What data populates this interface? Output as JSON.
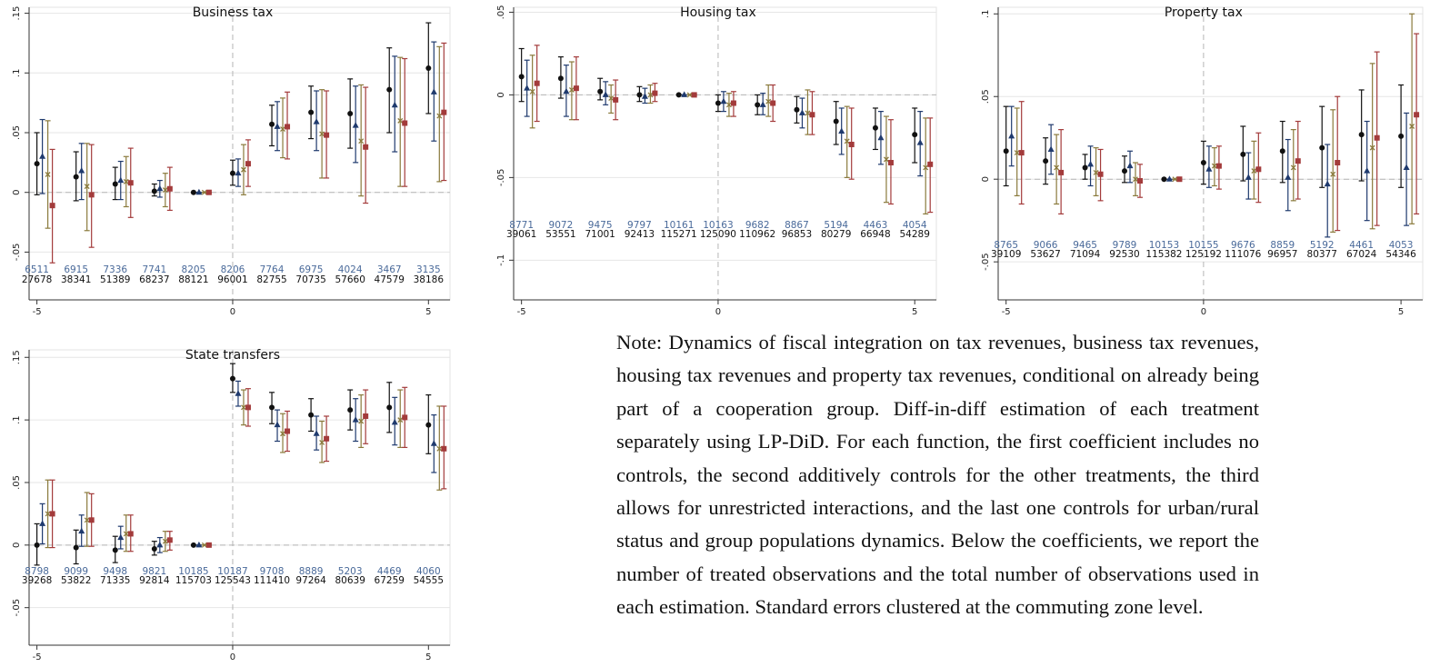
{
  "chart_data": [
    {
      "type": "coefplot",
      "title": "Business tax",
      "x": [
        -5,
        -4,
        -3,
        -2,
        -1,
        0,
        1,
        2,
        3,
        4,
        5
      ],
      "xlim": [
        -5.2,
        5.55
      ],
      "xticks": [
        -5,
        0,
        5
      ],
      "ylim": [
        -0.09,
        0.155
      ],
      "yticks": [
        {
          "value": -0.05,
          "label": "-.05"
        },
        0,
        {
          "value": 0.05,
          "label": ".05"
        },
        {
          "value": 0.1,
          "label": ".1"
        },
        {
          "value": 0.15,
          "label": ".15"
        }
      ],
      "grid": true,
      "series": [
        {
          "color": "#111111",
          "marker": "circle",
          "values": [
            0.024,
            0.013,
            0.007,
            0.001,
            0,
            0.016,
            0.057,
            0.067,
            0.066,
            0.086,
            0.104
          ],
          "lower": [
            -0.002,
            -0.007,
            -0.006,
            -0.003,
            0,
            0.006,
            0.039,
            0.045,
            0.037,
            0.05,
            0.066
          ],
          "upper": [
            0.05,
            0.034,
            0.021,
            0.007,
            0,
            0.027,
            0.073,
            0.089,
            0.095,
            0.121,
            0.142
          ]
        },
        {
          "color": "#1f3a6e",
          "marker": "triangle",
          "values": [
            0.03,
            0.018,
            0.01,
            0.003,
            0,
            0.016,
            0.055,
            0.059,
            0.056,
            0.073,
            0.084
          ],
          "lower": [
            -0.001,
            -0.006,
            -0.006,
            -0.004,
            0,
            0.005,
            0.035,
            0.035,
            0.025,
            0.034,
            0.043
          ],
          "upper": [
            0.061,
            0.041,
            0.026,
            0.01,
            0,
            0.028,
            0.076,
            0.085,
            0.089,
            0.114,
            0.126
          ]
        },
        {
          "color": "#8a7a3c",
          "marker": "x",
          "values": [
            0.015,
            0.005,
            0.009,
            0.002,
            0,
            0.019,
            0.053,
            0.049,
            0.043,
            0.06,
            0.064
          ],
          "lower": [
            -0.03,
            -0.032,
            -0.012,
            -0.012,
            0,
            -0.002,
            0.029,
            0.012,
            -0.003,
            0.005,
            0.009
          ],
          "upper": [
            0.06,
            0.041,
            0.03,
            0.016,
            0,
            0.04,
            0.079,
            0.086,
            0.09,
            0.113,
            0.122
          ]
        },
        {
          "color": "#a33b3b",
          "marker": "square",
          "values": [
            -0.011,
            -0.002,
            0.008,
            0.003,
            0,
            0.024,
            0.055,
            0.048,
            0.038,
            0.058,
            0.067
          ],
          "lower": [
            -0.059,
            -0.046,
            -0.021,
            -0.015,
            0,
            0.005,
            0.028,
            0.012,
            -0.009,
            0.005,
            0.01
          ],
          "upper": [
            0.036,
            0.04,
            0.037,
            0.021,
            0,
            0.044,
            0.084,
            0.085,
            0.088,
            0.112,
            0.125
          ]
        }
      ],
      "treated_counts": [
        6511,
        6915,
        7336,
        7741,
        8205,
        8206,
        7764,
        6975,
        4024,
        3467,
        3135
      ],
      "total_counts": [
        27678,
        38341,
        51389,
        68237,
        88121,
        96001,
        82755,
        70735,
        57660,
        47579,
        38186
      ]
    },
    {
      "type": "coefplot",
      "title": "Housing tax",
      "x": [
        -5,
        -4,
        -3,
        -2,
        -1,
        0,
        1,
        2,
        3,
        4,
        5
      ],
      "xlim": [
        -5.2,
        5.55
      ],
      "xticks": [
        -5,
        0,
        5
      ],
      "ylim": [
        -0.124,
        0.053
      ],
      "yticks": [
        {
          "value": -0.1,
          "label": "-.1"
        },
        {
          "value": -0.05,
          "label": "-.05"
        },
        0,
        {
          "value": 0.05,
          "label": ".05"
        }
      ],
      "grid": true,
      "series": [
        {
          "color": "#111111",
          "marker": "circle",
          "values": [
            0.011,
            0.01,
            0.002,
            0,
            0,
            -0.005,
            -0.006,
            -0.009,
            -0.016,
            -0.02,
            -0.024
          ],
          "lower": [
            -0.004,
            -0.002,
            -0.003,
            -0.004,
            0,
            -0.01,
            -0.012,
            -0.017,
            -0.03,
            -0.033,
            -0.041
          ],
          "upper": [
            0.028,
            0.023,
            0.01,
            0.005,
            0,
            0,
            0,
            -0.001,
            -0.004,
            -0.008,
            -0.008
          ]
        },
        {
          "color": "#1f3a6e",
          "marker": "triangle",
          "values": [
            0.004,
            0.002,
            0,
            -0.001,
            0,
            -0.004,
            -0.006,
            -0.011,
            -0.022,
            -0.026,
            -0.029
          ],
          "lower": [
            -0.013,
            -0.013,
            -0.006,
            -0.005,
            0,
            -0.01,
            -0.012,
            -0.02,
            -0.036,
            -0.042,
            -0.049
          ],
          "upper": [
            0.021,
            0.018,
            0.008,
            0.004,
            0,
            0.002,
            0.001,
            -0.002,
            -0.008,
            -0.01,
            -0.01
          ]
        },
        {
          "color": "#8a7a3c",
          "marker": "x",
          "values": [
            0.002,
            0.003,
            -0.002,
            0,
            0,
            -0.006,
            -0.004,
            -0.011,
            -0.028,
            -0.039,
            -0.044
          ],
          "lower": [
            -0.02,
            -0.015,
            -0.011,
            -0.005,
            0,
            -0.013,
            -0.013,
            -0.024,
            -0.05,
            -0.065,
            -0.072
          ],
          "upper": [
            0.024,
            0.02,
            0.006,
            0.006,
            0,
            0.001,
            0.006,
            0.003,
            -0.007,
            -0.013,
            -0.014
          ]
        },
        {
          "color": "#a33b3b",
          "marker": "square",
          "values": [
            0.007,
            0.004,
            -0.003,
            0.001,
            0,
            -0.005,
            -0.005,
            -0.012,
            -0.03,
            -0.041,
            -0.042
          ],
          "lower": [
            -0.016,
            -0.015,
            -0.015,
            -0.004,
            0,
            -0.013,
            -0.016,
            -0.024,
            -0.051,
            -0.066,
            -0.071
          ],
          "upper": [
            0.03,
            0.023,
            0.009,
            0.007,
            0,
            0.002,
            0.006,
            0.002,
            -0.008,
            -0.015,
            -0.014
          ]
        }
      ],
      "treated_counts": [
        8771,
        9072,
        9475,
        9797,
        10161,
        10163,
        9682,
        8867,
        5194,
        4463,
        4054
      ],
      "total_counts": [
        39061,
        53551,
        71001,
        92413,
        115271,
        125090,
        110962,
        96853,
        80279,
        66948,
        54289
      ]
    },
    {
      "type": "coefplot",
      "title": "Property tax",
      "x": [
        -5,
        -4,
        -3,
        -2,
        -1,
        0,
        1,
        2,
        3,
        4,
        5
      ],
      "xlim": [
        -5.2,
        5.55
      ],
      "xticks": [
        -5,
        0,
        5
      ],
      "ylim": [
        -0.073,
        0.104
      ],
      "yticks": [
        {
          "value": -0.05,
          "label": "-.05"
        },
        0,
        {
          "value": 0.05,
          "label": ".05"
        },
        {
          "value": 0.1,
          "label": ".1"
        }
      ],
      "grid": true,
      "series": [
        {
          "color": "#111111",
          "marker": "circle",
          "values": [
            0.017,
            0.011,
            0.007,
            0.005,
            0,
            0.01,
            0.015,
            0.017,
            0.019,
            0.027,
            0.026
          ],
          "lower": [
            -0.004,
            -0.003,
            0,
            -0.002,
            0,
            -0.003,
            -0.001,
            -0.002,
            -0.005,
            -0.001,
            -0.005
          ],
          "upper": [
            0.044,
            0.025,
            0.015,
            0.014,
            0,
            0.023,
            0.032,
            0.035,
            0.044,
            0.054,
            0.057
          ]
        },
        {
          "color": "#1f3a6e",
          "marker": "triangle",
          "values": [
            0.026,
            0.018,
            0.009,
            0.008,
            0,
            0.006,
            0.001,
            0.001,
            -0.003,
            0.005,
            0.007
          ],
          "lower": [
            0.008,
            0.003,
            -0.004,
            -0.002,
            0,
            -0.005,
            -0.012,
            -0.019,
            -0.035,
            -0.025,
            -0.028
          ],
          "upper": [
            0.044,
            0.033,
            0.02,
            0.017,
            0,
            0.02,
            0.016,
            0.024,
            0.021,
            0.035,
            0.04
          ]
        },
        {
          "color": "#8a7a3c",
          "marker": "x",
          "values": [
            0.016,
            0.007,
            0.004,
            0,
            0,
            0.008,
            0.005,
            0.007,
            0.003,
            0.019,
            0.032
          ],
          "lower": [
            -0.01,
            -0.015,
            -0.01,
            -0.01,
            0,
            -0.004,
            -0.012,
            -0.013,
            -0.032,
            -0.03,
            -0.027
          ],
          "upper": [
            0.043,
            0.027,
            0.019,
            0.01,
            0,
            0.019,
            0.023,
            0.03,
            0.042,
            0.07,
            0.1
          ]
        },
        {
          "color": "#a33b3b",
          "marker": "square",
          "values": [
            0.016,
            0.004,
            0.003,
            -0.001,
            0,
            0.008,
            0.006,
            0.011,
            0.01,
            0.025,
            0.039
          ],
          "lower": [
            -0.015,
            -0.021,
            -0.013,
            -0.011,
            0,
            -0.006,
            -0.014,
            -0.012,
            -0.031,
            -0.028,
            -0.021
          ],
          "upper": [
            0.047,
            0.03,
            0.018,
            0.009,
            0,
            0.02,
            0.028,
            0.035,
            0.05,
            0.077,
            0.088
          ]
        }
      ],
      "treated_counts": [
        8765,
        9066,
        9465,
        9789,
        10153,
        10155,
        9676,
        8859,
        5192,
        4461,
        4053
      ],
      "total_counts": [
        39109,
        53627,
        71094,
        92530,
        115382,
        125192,
        111076,
        96957,
        80377,
        67024,
        54346
      ]
    },
    {
      "type": "coefplot",
      "title": "State transfers",
      "x": [
        -5,
        -4,
        -3,
        -2,
        -1,
        0,
        1,
        2,
        3,
        4,
        5
      ],
      "xlim": [
        -5.2,
        5.55
      ],
      "xticks": [
        -5,
        0,
        5
      ],
      "ylim": [
        -0.08,
        0.156
      ],
      "yticks": [
        {
          "value": -0.05,
          "label": "-.05"
        },
        0,
        {
          "value": 0.05,
          "label": ".05"
        },
        {
          "value": 0.1,
          "label": ".1"
        },
        {
          "value": 0.15,
          "label": ".15"
        }
      ],
      "grid": true,
      "series": [
        {
          "color": "#111111",
          "marker": "circle",
          "values": [
            0,
            -0.002,
            -0.004,
            -0.003,
            0,
            0.133,
            0.11,
            0.104,
            0.108,
            0.11,
            0.096
          ],
          "lower": [
            -0.016,
            -0.015,
            -0.014,
            -0.008,
            0,
            0.122,
            0.097,
            0.091,
            0.092,
            0.09,
            0.073
          ],
          "upper": [
            0.017,
            0.012,
            0.007,
            0.003,
            0,
            0.145,
            0.122,
            0.117,
            0.124,
            0.13,
            0.12
          ]
        },
        {
          "color": "#1f3a6e",
          "marker": "triangle",
          "values": [
            0.017,
            0.011,
            0.006,
            0,
            0,
            0.121,
            0.096,
            0.089,
            0.1,
            0.098,
            0.081
          ],
          "lower": [
            0.001,
            -0.001,
            -0.003,
            -0.006,
            0,
            0.111,
            0.083,
            0.076,
            0.083,
            0.08,
            0.058
          ],
          "upper": [
            0.033,
            0.024,
            0.015,
            0.006,
            0,
            0.131,
            0.108,
            0.103,
            0.117,
            0.118,
            0.104
          ]
        },
        {
          "color": "#8a7a3c",
          "marker": "x",
          "values": [
            0.025,
            0.02,
            0.009,
            0.003,
            0,
            0.11,
            0.089,
            0.082,
            0.099,
            0.1,
            0.077
          ],
          "lower": [
            -0.002,
            -0.001,
            -0.005,
            -0.005,
            0,
            0.096,
            0.074,
            0.066,
            0.078,
            0.078,
            0.044
          ],
          "upper": [
            0.052,
            0.042,
            0.024,
            0.011,
            0,
            0.124,
            0.105,
            0.099,
            0.12,
            0.124,
            0.111
          ]
        },
        {
          "color": "#a33b3b",
          "marker": "square",
          "values": [
            0.025,
            0.02,
            0.009,
            0.004,
            0,
            0.11,
            0.091,
            0.085,
            0.103,
            0.102,
            0.077
          ],
          "lower": [
            -0.002,
            -0.001,
            -0.005,
            -0.004,
            0,
            0.095,
            0.075,
            0.067,
            0.081,
            0.078,
            0.045
          ],
          "upper": [
            0.052,
            0.041,
            0.024,
            0.011,
            0,
            0.125,
            0.107,
            0.103,
            0.124,
            0.126,
            0.111
          ]
        }
      ],
      "treated_counts": [
        8798,
        9099,
        9498,
        9821,
        10185,
        10187,
        9708,
        8889,
        5203,
        4469,
        4060
      ],
      "total_counts": [
        39268,
        53822,
        71335,
        92814,
        115703,
        125543,
        111410,
        97264,
        80639,
        67259,
        54555
      ]
    }
  ],
  "note": "Note: Dynamics of fiscal integration on tax revenues, business tax revenues, housing tax revenues and property tax revenues, conditional on already being part of a cooperation group. Diff-in-diff estimation of each treatment separately using LP-DiD. For each function, the first coefficient includes no controls, the second additively controls for the other treatments, the third allows for unrestricted interactions, and the last one controls for urban/rural status and group populations dynamics. Below the coefficients, we report the number of treated observations and the total number of observations used in each estimation. Standard errors clustered at the commuting zone level."
}
